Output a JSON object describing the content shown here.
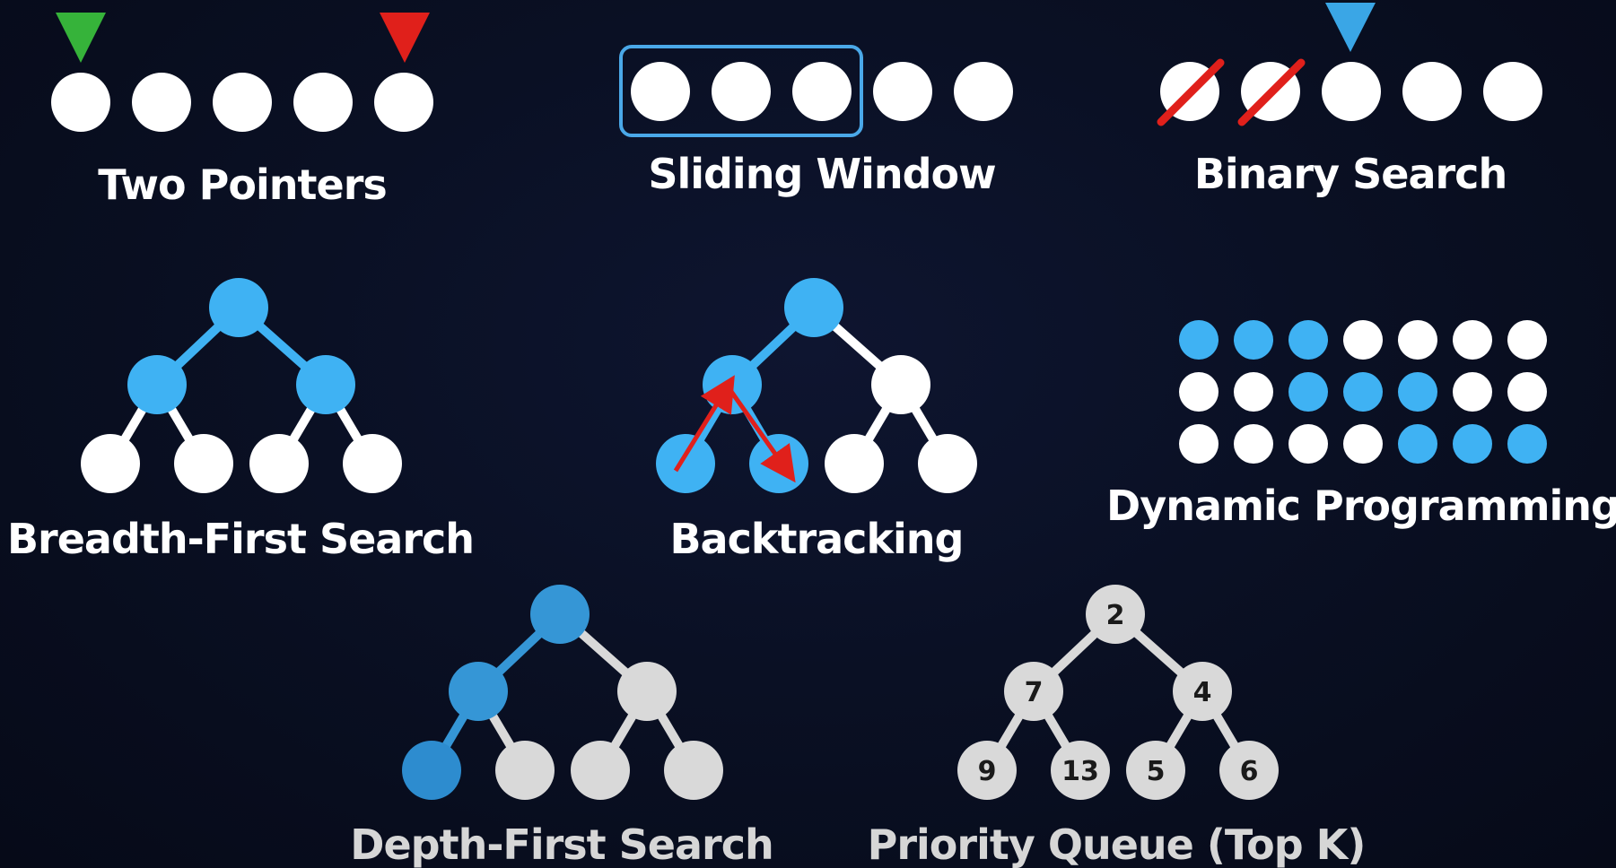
{
  "colors": {
    "white": "#ffffff",
    "gray": "#d9d9d9",
    "blue": "#3fb2f3",
    "blue_dim": "#3596d6",
    "blue_dark": "#2d8ccf",
    "green": "#36b33a",
    "red": "#e0201b",
    "frame": "#4aa8e8"
  },
  "labels": {
    "two_pointers": "Two Pointers",
    "sliding_window": "Sliding Window",
    "binary_search": "Binary Search",
    "bfs": "Breadth-First Search",
    "backtracking": "Backtracking",
    "dynamic_programming": "Dynamic Programming",
    "dfs": "Depth-First Search",
    "priority_queue": "Priority Queue (Top K)"
  },
  "two_pointers": {
    "count": 5,
    "left_pointer": "green-triangle-icon",
    "right_pointer": "red-triangle-icon"
  },
  "sliding_window": {
    "count": 5,
    "window": [
      0,
      2
    ]
  },
  "binary_search": {
    "count": 5,
    "eliminated": [
      0,
      1
    ],
    "pointer_index": 2
  },
  "bfs": {
    "blue": [
      "root",
      "l",
      "r"
    ]
  },
  "backtracking": {
    "blue": [
      "root",
      "l",
      "ll",
      "lr"
    ],
    "arrows": "red-arrow-icon"
  },
  "dynamic_programming": {
    "rows": [
      [
        1,
        1,
        1,
        0,
        0,
        0,
        0
      ],
      [
        0,
        0,
        1,
        1,
        1,
        0,
        0
      ],
      [
        0,
        0,
        0,
        0,
        1,
        1,
        1
      ]
    ]
  },
  "dfs": {
    "blue": [
      "root",
      "l",
      "ll"
    ]
  },
  "priority_queue": {
    "values": {
      "root": "2",
      "l": "7",
      "r": "4",
      "ll": "9",
      "lr": "13",
      "rl": "5",
      "rr": "6"
    }
  }
}
